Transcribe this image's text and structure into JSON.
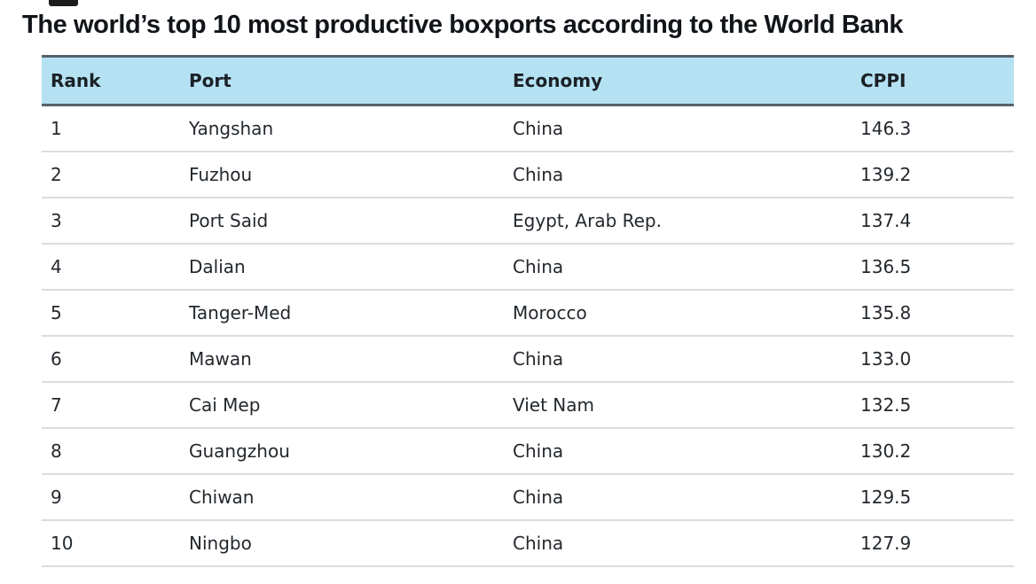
{
  "title": "The world’s top 10 most productive boxports according to the World Bank",
  "table": {
    "columns": [
      "Rank",
      "Port",
      "Economy",
      "CPPI"
    ],
    "rows": [
      {
        "rank": "1",
        "port": "Yangshan",
        "economy": "China",
        "cppi": "146.3"
      },
      {
        "rank": "2",
        "port": "Fuzhou",
        "economy": "China",
        "cppi": "139.2"
      },
      {
        "rank": "3",
        "port": "Port Said",
        "economy": "Egypt, Arab Rep.",
        "cppi": "137.4"
      },
      {
        "rank": "4",
        "port": "Dalian",
        "economy": "China",
        "cppi": "136.5"
      },
      {
        "rank": "5",
        "port": "Tanger-Med",
        "economy": "Morocco",
        "cppi": "135.8"
      },
      {
        "rank": "6",
        "port": "Mawan",
        "economy": "China",
        "cppi": "133.0"
      },
      {
        "rank": "7",
        "port": "Cai Mep",
        "economy": "Viet Nam",
        "cppi": "132.5"
      },
      {
        "rank": "8",
        "port": "Guangzhou",
        "economy": "China",
        "cppi": "130.2"
      },
      {
        "rank": "9",
        "port": "Chiwan",
        "economy": "China",
        "cppi": "129.5"
      },
      {
        "rank": "10",
        "port": "Ningbo",
        "economy": "China",
        "cppi": "127.9"
      }
    ]
  },
  "colors": {
    "header_bg": "#b5e2f3",
    "header_border": "#57616a",
    "row_divider": "#dcdcdc",
    "title_text": "#111418",
    "body_text": "#23282d",
    "background": "#ffffff"
  },
  "chart_data": {
    "type": "table",
    "title": "The world’s top 10 most productive boxports according to the World Bank",
    "columns": [
      "Rank",
      "Port",
      "Economy",
      "CPPI"
    ],
    "rows": [
      [
        1,
        "Yangshan",
        "China",
        146.3
      ],
      [
        2,
        "Fuzhou",
        "China",
        139.2
      ],
      [
        3,
        "Port Said",
        "Egypt, Arab Rep.",
        137.4
      ],
      [
        4,
        "Dalian",
        "China",
        136.5
      ],
      [
        5,
        "Tanger-Med",
        "Morocco",
        135.8
      ],
      [
        6,
        "Mawan",
        "China",
        133.0
      ],
      [
        7,
        "Cai Mep",
        "Viet Nam",
        132.5
      ],
      [
        8,
        "Guangzhou",
        "China",
        130.2
      ],
      [
        9,
        "Chiwan",
        "China",
        129.5
      ],
      [
        10,
        "Ningbo",
        "China",
        127.9
      ]
    ]
  }
}
